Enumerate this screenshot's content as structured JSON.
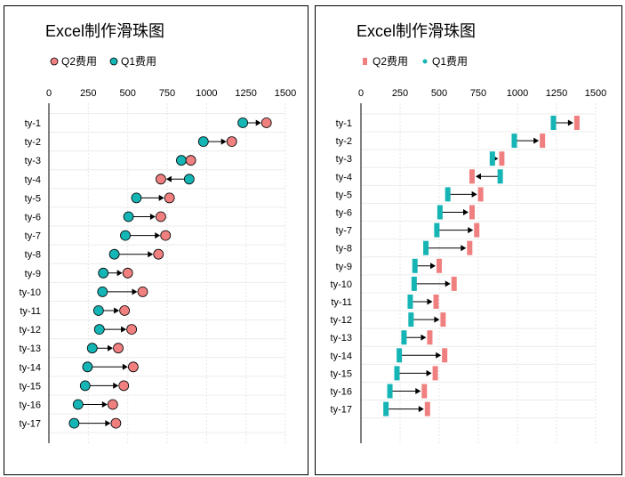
{
  "chart_data": [
    {
      "type": "dumbbell",
      "title": "Excel制作滑珠图",
      "marker": "circle",
      "legend": {
        "placement": "top-left",
        "entries": [
          {
            "name": "Q2费用",
            "color": "#F08080"
          },
          {
            "name": "Q1费用",
            "color": "#16B5B5"
          }
        ]
      },
      "x_axis": {
        "position": "top",
        "min": 0,
        "max": 1500,
        "step": 250,
        "ticks": [
          "0",
          "250",
          "500",
          "750",
          "1000",
          "1250",
          "1500"
        ]
      },
      "grid": true,
      "categories": [
        "ty-1",
        "ty-2",
        "ty-3",
        "ty-4",
        "ty-5",
        "ty-6",
        "ty-7",
        "ty-8",
        "ty-9",
        "ty-10",
        "ty-11",
        "ty-12",
        "ty-13",
        "ty-14",
        "ty-15",
        "ty-16",
        "ty-17"
      ],
      "series": [
        {
          "name": "Q1费用",
          "color": "#16B5B5",
          "values": [
            1230,
            980,
            840,
            890,
            555,
            505,
            485,
            415,
            345,
            340,
            315,
            320,
            275,
            245,
            230,
            185,
            160
          ]
        },
        {
          "name": "Q2费用",
          "color": "#F08080",
          "values": [
            1380,
            1160,
            900,
            710,
            765,
            710,
            740,
            695,
            500,
            595,
            480,
            525,
            440,
            535,
            475,
            405,
            425
          ]
        }
      ]
    },
    {
      "type": "dumbbell",
      "title": "Excel制作滑珠图",
      "marker": "bar",
      "legend": {
        "placement": "top-left",
        "entries": [
          {
            "name": "Q2费用",
            "color": "#F08080"
          },
          {
            "name": "Q1费用",
            "color": "#16B5B5"
          }
        ]
      },
      "x_axis": {
        "position": "top",
        "min": 0,
        "max": 1500,
        "step": 250,
        "ticks": [
          "0",
          "250",
          "500",
          "750",
          "1000",
          "1250",
          "1500"
        ]
      },
      "grid": true,
      "categories": [
        "ty-1",
        "ty-2",
        "ty-3",
        "ty-4",
        "ty-5",
        "ty-6",
        "ty-7",
        "ty-8",
        "ty-9",
        "ty-10",
        "ty-11",
        "ty-12",
        "ty-13",
        "ty-14",
        "ty-15",
        "ty-16",
        "ty-17"
      ],
      "series": [
        {
          "name": "Q1费用",
          "color": "#16B5B5",
          "values": [
            1230,
            980,
            840,
            890,
            555,
            505,
            485,
            415,
            345,
            340,
            315,
            320,
            275,
            245,
            230,
            185,
            160
          ]
        },
        {
          "name": "Q2费用",
          "color": "#F08080",
          "values": [
            1380,
            1160,
            900,
            710,
            765,
            710,
            740,
            695,
            500,
            595,
            480,
            525,
            440,
            535,
            475,
            405,
            425
          ]
        }
      ]
    }
  ]
}
